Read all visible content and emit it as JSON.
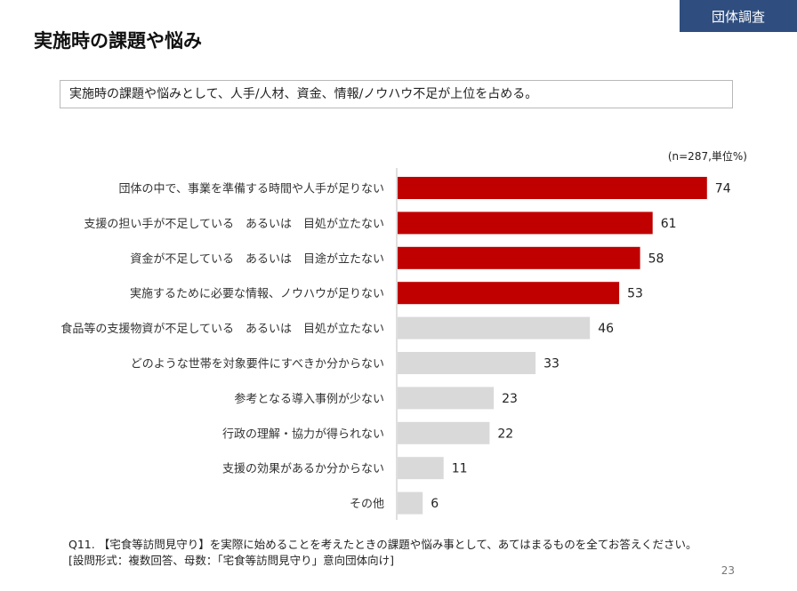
{
  "header": {
    "tag": "団体調査",
    "title": "実施時の課題や悩み",
    "summary": "実施時の課題や悩みとして、人手/人材、資金、情報/ノウハウ不足が上位を占める。"
  },
  "chart_data": {
    "type": "bar",
    "orientation": "horizontal",
    "note": "(n=287,単位%)",
    "categories": [
      "団体の中で、事業を準備する時間や人手が足りない",
      "支援の担い手が不足している　あるいは　目処が立たない",
      "資金が不足している　あるいは　目途が立たない",
      "実施するために必要な情報、ノウハウが足りない",
      "食品等の支援物資が不足している　あるいは　目処が立たない",
      "どのような世帯を対象要件にすべきか分からない",
      "参考となる導入事例が少ない",
      "行政の理解・協力が得られない",
      "支援の効果があるか分からない",
      "その他"
    ],
    "values": [
      74,
      61,
      58,
      53,
      46,
      33,
      23,
      22,
      11,
      6
    ],
    "highlight_count": 4,
    "colors": {
      "highlight": "#c00000",
      "normal": "#d9d9d9"
    },
    "xlim": [
      0,
      100
    ]
  },
  "footer": {
    "question": "Q11. 【宅食等訪問見守り】を実際に始めることを考えたときの課題や悩み事として、あてはまるものを全てお答えください。",
    "format": "[設問形式：複数回答、母数：「宅食等訪問見守り」意向団体向け]",
    "page": "23"
  }
}
